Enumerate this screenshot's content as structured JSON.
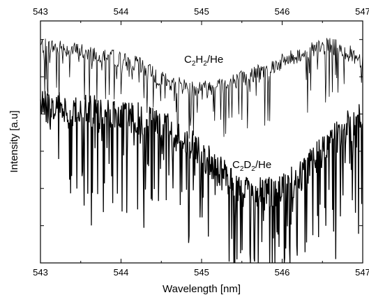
{
  "chart_data": {
    "type": "line",
    "xlabel": "Wavelength [nm]",
    "ylabel": "Intensity [a.u]",
    "xlim": [
      543,
      547
    ],
    "x_ticks": [
      "543",
      "544",
      "545",
      "546",
      "547"
    ],
    "top_x_ticks": [
      "543",
      "544",
      "545",
      "546",
      "547"
    ],
    "y_tick_labels_shown": false,
    "grid": false,
    "series": [
      {
        "name": "C2H2/He",
        "label_parts": [
          "C",
          "2",
          "H",
          "2",
          "/He"
        ],
        "stroke": "thin",
        "envelope_x": [
          543.0,
          543.4,
          543.8,
          544.2,
          544.6,
          545.0,
          545.4,
          545.8,
          546.2,
          546.6,
          547.0
        ],
        "envelope_y": [
          0.9,
          0.88,
          0.86,
          0.82,
          0.74,
          0.72,
          0.75,
          0.8,
          0.86,
          0.9,
          0.84
        ]
      },
      {
        "name": "C2D2/He",
        "label_parts": [
          "C",
          "2",
          "D",
          "2",
          "/He"
        ],
        "stroke": "thick",
        "envelope_x": [
          543.0,
          543.4,
          543.8,
          544.2,
          544.6,
          545.0,
          545.4,
          545.8,
          546.2,
          546.6,
          547.0
        ],
        "envelope_y": [
          0.65,
          0.63,
          0.62,
          0.6,
          0.55,
          0.45,
          0.32,
          0.28,
          0.35,
          0.5,
          0.62
        ]
      }
    ]
  }
}
